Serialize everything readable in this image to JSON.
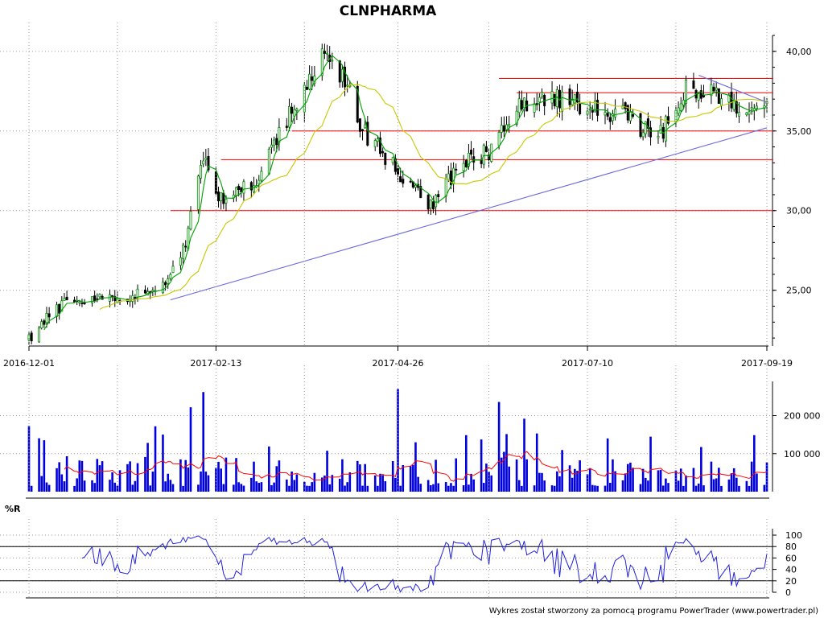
{
  "chart_data": {
    "type": "candlestick",
    "title": "CLNPHARMA",
    "footer": "Wykres został stworzony za pomocą programu PowerTrader (www.powertrader.pl)",
    "x_tick_labels": [
      "2016-12-01",
      "2017-02-13",
      "2017-04-26",
      "2017-07-10",
      "2017-09-19"
    ],
    "price_panel": {
      "y_ticks": [
        "25,00",
        "30,00",
        "35,00",
        "40,00"
      ],
      "y_tick_values": [
        25,
        30,
        35,
        40
      ],
      "ylim": [
        21.5,
        41.0
      ],
      "key_points": [
        {
          "date": "2016-12-01",
          "close": 22.0
        },
        {
          "date": "2016-12-15",
          "close": 24.3
        },
        {
          "date": "2017-01-10",
          "close": 24.7
        },
        {
          "date": "2017-01-25",
          "close": 25.6
        },
        {
          "date": "2017-02-01",
          "close": 28.0
        },
        {
          "date": "2017-02-08",
          "close": 33.5
        },
        {
          "date": "2017-02-13",
          "close": 30.8
        },
        {
          "date": "2017-02-28",
          "close": 31.5
        },
        {
          "date": "2017-03-08",
          "close": 34.2
        },
        {
          "date": "2017-03-20",
          "close": 37.8
        },
        {
          "date": "2017-03-27",
          "close": 39.5
        },
        {
          "date": "2017-04-05",
          "close": 38.3
        },
        {
          "date": "2017-04-12",
          "close": 35.0
        },
        {
          "date": "2017-04-26",
          "close": 32.5
        },
        {
          "date": "2017-05-08",
          "close": 30.2
        },
        {
          "date": "2017-05-22",
          "close": 33.0
        },
        {
          "date": "2017-06-02",
          "close": 33.8
        },
        {
          "date": "2017-06-12",
          "close": 36.5
        },
        {
          "date": "2017-06-26",
          "close": 37.2
        },
        {
          "date": "2017-07-10",
          "close": 36.5
        },
        {
          "date": "2017-07-24",
          "close": 36.0
        },
        {
          "date": "2017-08-07",
          "close": 34.5
        },
        {
          "date": "2017-08-18",
          "close": 37.8
        },
        {
          "date": "2017-08-28",
          "close": 37.5
        },
        {
          "date": "2017-09-07",
          "close": 36.6
        },
        {
          "date": "2017-09-19",
          "close": 36.3
        }
      ],
      "horizontal_lines": [
        30.0,
        33.2,
        35.0,
        37.4,
        38.3
      ],
      "trendlines": [
        {
          "from": {
            "date": "2017-01-26",
            "value": 24.4
          },
          "to": {
            "date": "2017-09-19",
            "value": 35.2
          }
        },
        {
          "from": {
            "date": "2017-08-23",
            "value": 38.5
          },
          "to": {
            "date": "2017-09-19",
            "value": 36.8
          }
        }
      ],
      "moving_averages": [
        {
          "name": "short",
          "color": "#00a000"
        },
        {
          "name": "long",
          "color": "#c8c800"
        }
      ],
      "colors": {
        "up": "#009000",
        "down": "#000000",
        "hline": "#ff0000",
        "trend": "#6a6ae0"
      }
    },
    "volume_panel": {
      "y_ticks": [
        "100 000",
        "200 000"
      ],
      "y_tick_values": [
        100000,
        200000
      ],
      "ylim": [
        0,
        290000
      ],
      "bar_color": "#0000dd",
      "avg_color": "#ff0000",
      "key_values": [
        {
          "date": "2017-01-20",
          "volume": 172000
        },
        {
          "date": "2017-02-03",
          "volume": 222000
        },
        {
          "date": "2017-02-08",
          "volume": 262000
        },
        {
          "date": "2017-04-26",
          "volume": 270000
        },
        {
          "date": "2017-06-05",
          "volume": 236000
        }
      ]
    },
    "indicator_panel": {
      "label": "%R",
      "y_ticks": [
        "0",
        "20",
        "40",
        "60",
        "80",
        "100"
      ],
      "y_tick_values": [
        0,
        20,
        40,
        60,
        80,
        100
      ],
      "ylim": [
        0,
        100
      ],
      "levels": [
        20,
        80
      ],
      "line_color": "#2222dd"
    }
  }
}
